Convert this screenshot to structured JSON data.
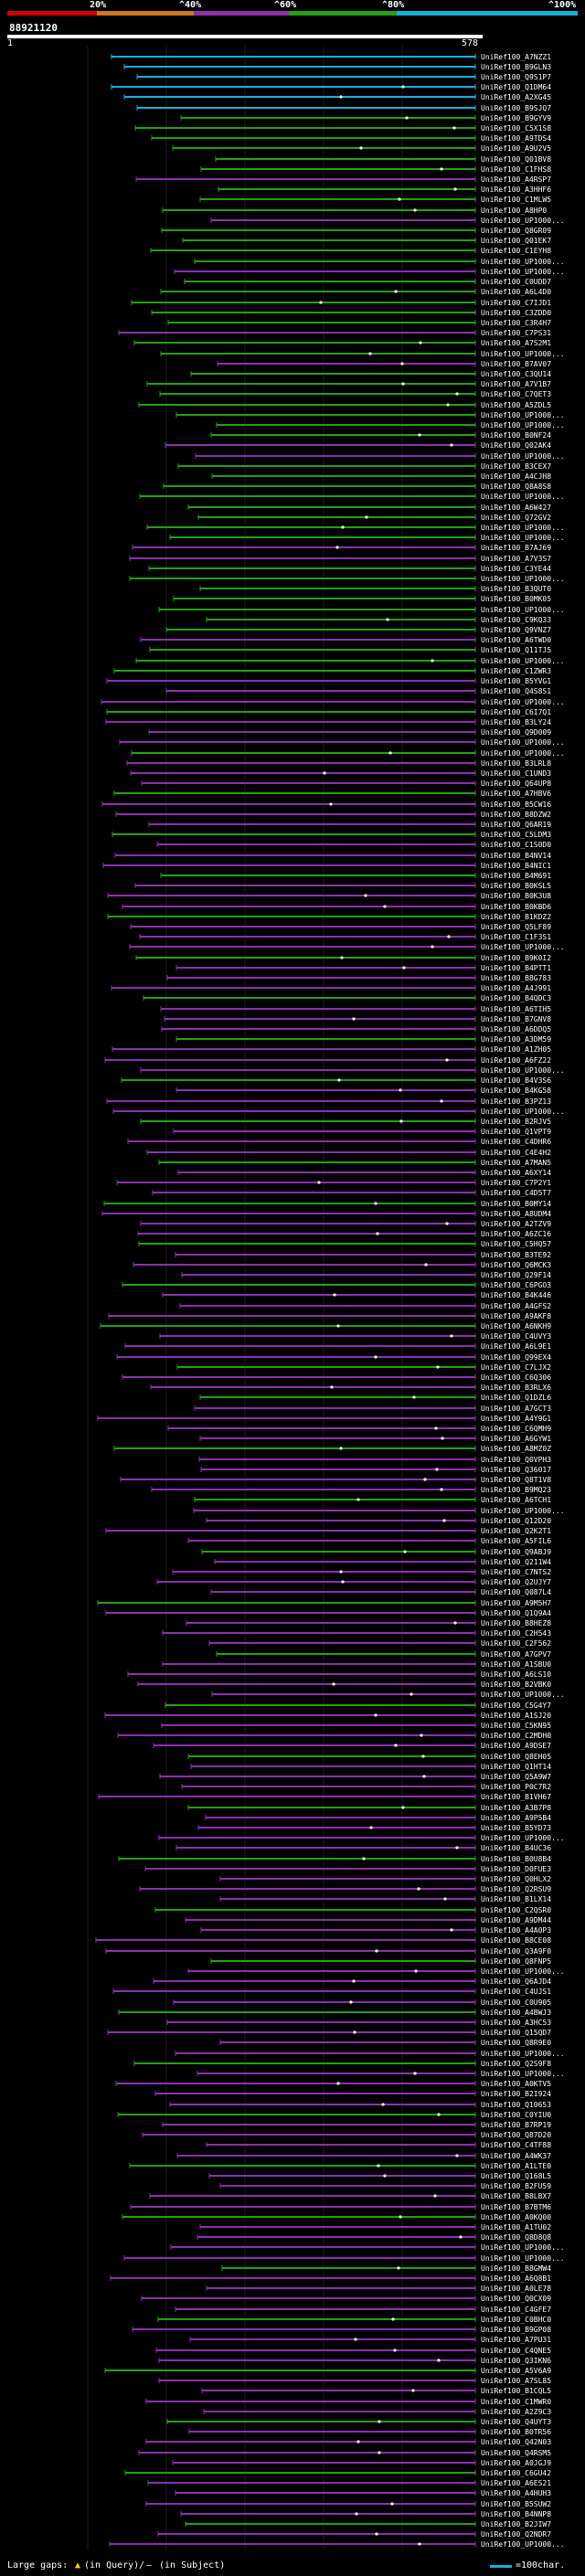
{
  "legend": {
    "segments": [
      {
        "color": "#d40000",
        "label": "20%"
      },
      {
        "color": "#d4741c",
        "label": "40%"
      },
      {
        "color": "#8e2fad",
        "label": "60%"
      },
      {
        "color": "#24a014",
        "label": "80%"
      },
      {
        "color": "#16b0d8",
        "label": "100%"
      }
    ],
    "label_prefix": "^"
  },
  "query": {
    "id": "88921120",
    "start": "1",
    "end": "578"
  },
  "hit_names": [
    "UniRef100_A7NZZ1",
    "UniRef100_B9GLN3",
    "UniRef100_Q9S1P7",
    "UniRef100_Q1DM64",
    "UniRef100_A2XG45",
    "UniRef100_B9SJQ7",
    "UniRef100_B9GYV9",
    "UniRef100_C5X1S8",
    "UniRef100_A9TDS4",
    "UniRef100_A9U2V5",
    "UniRef100_Q01BV8",
    "UniRef100_C1FHS8",
    "UniRef100_A4RSP7",
    "UniRef100_A3HHF6",
    "UniRef100_C1MLW5",
    "UniRef100_A8HP0",
    "UniRef100_UP1000...",
    "UniRef100_Q8GR09",
    "UniRef100_Q01EK7",
    "UniRef100_C1EYH8",
    "UniRef100_UP1000...",
    "UniRef100_UP1000...",
    "UniRef100_C0UDD7",
    "UniRef100_A6L4D0",
    "UniRef100_C7IJD1",
    "UniRef100_C3ZDD0",
    "UniRef100_C3R4H7",
    "UniRef100_C7PS31",
    "UniRef100_A7S2M1",
    "UniRef100_UP1000...",
    "UniRef100_B7AV07",
    "UniRef100_C3QU14",
    "UniRef100_A7V1B7",
    "UniRef100_C7QET3",
    "UniRef100_A5ZDL5",
    "UniRef100_UP1000...",
    "UniRef100_UP1000...",
    "UniRef100_B0NF24",
    "UniRef100_Q02AK4",
    "UniRef100_UP1000...",
    "UniRef100_B3CEX7",
    "UniRef100_A4CJH8",
    "UniRef100_Q8A8S8",
    "UniRef100_UP1000...",
    "UniRef100_A6W427",
    "UniRef100_Q72GV2",
    "UniRef100_UP1000...",
    "UniRef100_UP1000...",
    "UniRef100_B7AJ69",
    "UniRef100_A7V3S7",
    "UniRef100_C3YE44",
    "UniRef100_UP1000...",
    "UniRef100_B3QUT0",
    "UniRef100_B0MK05",
    "UniRef100_UP1000...",
    "UniRef100_C9KQ33",
    "UniRef100_Q9VNZ7",
    "UniRef100_A6TWD0",
    "UniRef100_Q11TJ5",
    "UniRef100_UP1000...",
    "UniRef100_C1ZWR3",
    "UniRef100_B5YVG1",
    "UniRef100_Q4S8S1",
    "UniRef100_UP1000...",
    "UniRef100_C6I7Q1",
    "UniRef100_B3LY24",
    "UniRef100_Q9D009",
    "UniRef100_UP1000...",
    "UniRef100_UP1000...",
    "UniRef100_B3LRL8",
    "UniRef100_C1UND3",
    "UniRef100_Q64UP8",
    "UniRef100_A7HBV6",
    "UniRef100_B5CW16",
    "UniRef100_B8DZW2",
    "UniRef100_Q6AR19",
    "UniRef100_C5LDM3",
    "UniRef100_C1S0D0",
    "UniRef100_B4NV14",
    "UniRef100_B4NIC1",
    "UniRef100_B4M691",
    "UniRef100_B0KSL5",
    "UniRef100_B0K3U8",
    "UniRef100_B0KBD6",
    "UniRef100_B1KDZ2",
    "UniRef100_Q5LF89",
    "UniRef100_C1F3S1",
    "UniRef100_UP1000...",
    "UniRef100_B9K0I2",
    "UniRef100_B4PTT1",
    "UniRef100_B8G783",
    "UniRef100_A4J991",
    "UniRef100_B4QDC3",
    "UniRef100_A6TIH5",
    "UniRef100_B7GNV8",
    "UniRef100_A6DDQ5",
    "UniRef100_A3DM59",
    "UniRef100_A1ZH05",
    "UniRef100_A6FZ22",
    "UniRef100_UP1000...",
    "UniRef100_B4V3S6",
    "UniRef100_B4KG58",
    "UniRef100_B3PZ13",
    "UniRef100_UP1000...",
    "UniRef100_B2RJV5",
    "UniRef100_Q1VPT9",
    "UniRef100_C4DHR6",
    "UniRef100_C4E4H2",
    "UniRef100_A7MAN5",
    "UniRef100_A6XY14",
    "UniRef100_C7P2Y1",
    "UniRef100_C4D5T7",
    "UniRef100_B0MY14",
    "UniRef100_A8UDM4",
    "UniRef100_A2TZV9",
    "UniRef100_A6ZC16",
    "UniRef100_C5HQ57",
    "UniRef100_B3TE92",
    "UniRef100_Q6MCK3",
    "UniRef100_Q29F14",
    "UniRef100_C6PGO3",
    "UniRef100_B4K446",
    "UniRef100_A4GFS2",
    "UniRef100_A9AKF8",
    "UniRef100_A6NKH9",
    "UniRef100_C4UVY3",
    "UniRef100_A6L9E1",
    "UniRef100_Q99EX4",
    "UniRef100_C7LJX2",
    "UniRef100_C6Q306",
    "UniRef100_B3RLX6",
    "UniRef100_Q1DZL6",
    "UniRef100_A7GCT3",
    "UniRef100_A4Y9G1",
    "UniRef100_C6QMH9",
    "UniRef100_A6GYW1",
    "UniRef100_A8MZ0Z",
    "UniRef100_Q0VPH3",
    "UniRef100_Q36017",
    "UniRef100_Q8T1V8",
    "UniRef100_B9MQ23",
    "UniRef100_A6TCH1",
    "UniRef100_UP1000...",
    "UniRef100_Q12D20",
    "UniRef100_Q2K2T1",
    "UniRef100_A5FIL6",
    "UniRef100_Q9ABJ9",
    "UniRef100_Q211W4",
    "UniRef100_C7NTS2",
    "UniRef100_Q2UJY7",
    "UniRef100_Q087L4",
    "UniRef100_A9M5H7",
    "UniRef100_Q1Q9A4",
    "UniRef100_B8HEZ8",
    "UniRef100_C2H543",
    "UniRef100_C2F562",
    "UniRef100_A7GPV7",
    "UniRef100_A1SBU0",
    "UniRef100_A6LS10",
    "UniRef100_B2VBK0",
    "UniRef100_UP1000...",
    "UniRef100_C5G4Y7",
    "UniRef100_A1SJ20",
    "UniRef100_C5KN95",
    "UniRef100_C2MDH0",
    "UniRef100_A9DSE7",
    "UniRef100_Q8EH05",
    "UniRef100_Q1HT14",
    "UniRef100_Q5A9W7",
    "UniRef100_P0C7R2",
    "UniRef100_B1VH67",
    "UniRef100_A3B7P8",
    "UniRef100_A9P5B4",
    "UniRef100_B5YD73",
    "UniRef100_UP1000...",
    "UniRef100_B4UC36",
    "UniRef100_B0U8B4",
    "UniRef100_D0FUE3",
    "UniRef100_Q0HLX2",
    "UniRef100_Q2RSU9",
    "UniRef100_B1LX14",
    "UniRef100_C2QSR0",
    "UniRef100_A9DM44",
    "UniRef100_A4A0P3",
    "UniRef100_B8CE08",
    "UniRef100_Q3A9F0",
    "UniRef100_Q8FNP5",
    "UniRef100_UP1000...",
    "UniRef100_Q6AJD4",
    "UniRef100_C4UJS1",
    "UniRef100_C0U905",
    "UniRef100_A4BWJ3",
    "UniRef100_A3HC53",
    "UniRef100_Q15QD7",
    "UniRef100_Q8R9E0",
    "UniRef100_UP1000...",
    "UniRef100_Q2S9F8",
    "UniRef100_UP1000...",
    "UniRef100_A0KTV5",
    "UniRef100_B2I924",
    "UniRef100_Q10653",
    "UniRef100_C0YIU0",
    "UniRef100_B7RP19",
    "UniRef100_Q87D20",
    "UniRef100_C4TF88",
    "UniRef100_A4WK37",
    "UniRef100_A1LTE0",
    "UniRef100_Q168L5",
    "UniRef100_B2FU59",
    "UniRef100_B8LBX7",
    "UniRef100_B7BTM6",
    "UniRef100_A0KQ00",
    "UniRef100_A1TU02",
    "UniRef100_Q8D8Q8",
    "UniRef100_UP1000...",
    "UniRef100_UP1000...",
    "UniRef100_B8GMW4",
    "UniRef100_A6Q8B1",
    "UniRef100_A0LE78",
    "UniRef100_Q0CX09",
    "UniRef100_C4GFE7",
    "UniRef100_C0BHC0",
    "UniRef100_B9GP08",
    "UniRef100_A7PU31",
    "UniRef100_C4QNE5",
    "UniRef100_Q3IKN6",
    "UniRef100_A5V6A9",
    "UniRef100_A7SL85",
    "UniRef100_B1CQL5",
    "UniRef100_C1MWR0",
    "UniRef100_A2Z9C3",
    "UniRef100_Q4UYT3",
    "UniRef100_B0TR56",
    "UniRef100_Q42N03",
    "UniRef100_Q4RSM5",
    "UniRef100_A0JGJ9",
    "UniRef100_C6GU42",
    "UniRef100_A6ES21",
    "UniRef100_A4HUH3",
    "UniRef100_B5SUW2",
    "UniRef100_B4NNP8",
    "UniRef100_B2JIW7",
    "UniRef100_Q2NDR7",
    "UniRef100_UP1000..."
  ],
  "footer": {
    "large_gaps_label": "Large gaps:",
    "gap_query_symbol": "▲",
    "gap_query_label": "(in Query)",
    "separator": "/",
    "gap_subject_symbol": "—",
    "gap_subject_label": "(in Subject)",
    "scale_label": "=100char."
  }
}
